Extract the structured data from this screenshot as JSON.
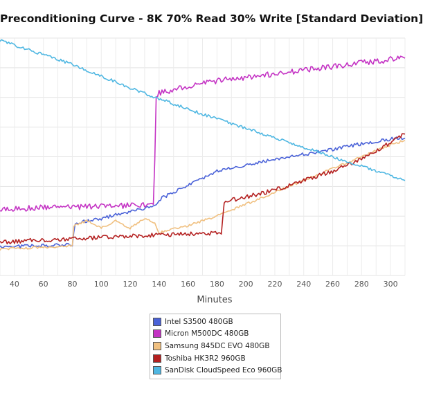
{
  "title": "Preconditioning Curve - 8K 70% Read 30% Write [Standard Deviation]",
  "chart_data": {
    "type": "line",
    "title": "Preconditioning Curve - 8K 70% Read 30% Write [Standard Deviation]",
    "xlabel": "Minutes",
    "ylabel": "",
    "xlim": [
      30,
      310
    ],
    "ylim": [
      0,
      100
    ],
    "xticks": [
      "40",
      "60",
      "80",
      "100",
      "120",
      "140",
      "160",
      "180",
      "200",
      "220",
      "240",
      "260",
      "280",
      "300"
    ],
    "grid": true,
    "legend_position": "bottom",
    "series": [
      {
        "name": "Intel S3500 480GB",
        "color": "#4a62d8",
        "x": [
          30,
          80,
          82,
          100,
          120,
          137,
          140,
          160,
          180,
          200,
          220,
          240,
          260,
          280,
          300,
          310
        ],
        "y": [
          12,
          13,
          22,
          24,
          27,
          29,
          32,
          38,
          44,
          46.5,
          49,
          51,
          53,
          55.5,
          57.5,
          58
        ]
      },
      {
        "name": "Micron M500DC 480GB",
        "color": "#c433c4",
        "x": [
          30,
          60,
          100,
          136,
          137,
          138,
          140,
          160,
          180,
          200,
          220,
          240,
          260,
          280,
          300,
          310
        ],
        "y": [
          28,
          28.5,
          29,
          30,
          50,
          76,
          77,
          79.5,
          82,
          83.5,
          85,
          86.5,
          88,
          89.5,
          91,
          91.5
        ]
      },
      {
        "name": "Samsung 845DC EVO 480GB",
        "color": "#f0c080",
        "x": [
          30,
          80,
          81,
          90,
          100,
          110,
          120,
          130,
          137,
          140,
          160,
          180,
          200,
          220,
          240,
          260,
          280,
          300,
          310
        ],
        "y": [
          11,
          12.5,
          21,
          23,
          20,
          23,
          20,
          24,
          22,
          18,
          21,
          25,
          30,
          35,
          40,
          45,
          50,
          55,
          57
        ]
      },
      {
        "name": "Toshiba HK3R2 960GB",
        "color": "#b42020",
        "x": [
          30,
          60,
          80,
          100,
          120,
          140,
          160,
          183,
          185,
          200,
          220,
          240,
          260,
          280,
          300,
          310
        ],
        "y": [
          14,
          15,
          15.5,
          16,
          16.5,
          17,
          17.5,
          18,
          31,
          33,
          36,
          40,
          44,
          49,
          56,
          60
        ]
      },
      {
        "name": "SanDisk CloudSpeed Eco 960GB",
        "color": "#4fb7e2",
        "x": [
          30,
          40,
          60,
          80,
          100,
          120,
          140,
          160,
          180,
          200,
          220,
          240,
          260,
          280,
          300,
          310
        ],
        "y": [
          99,
          97,
          93,
          89,
          84,
          79,
          74.5,
          70,
          66,
          62,
          58,
          54,
          50,
          46,
          42,
          40
        ]
      }
    ]
  }
}
